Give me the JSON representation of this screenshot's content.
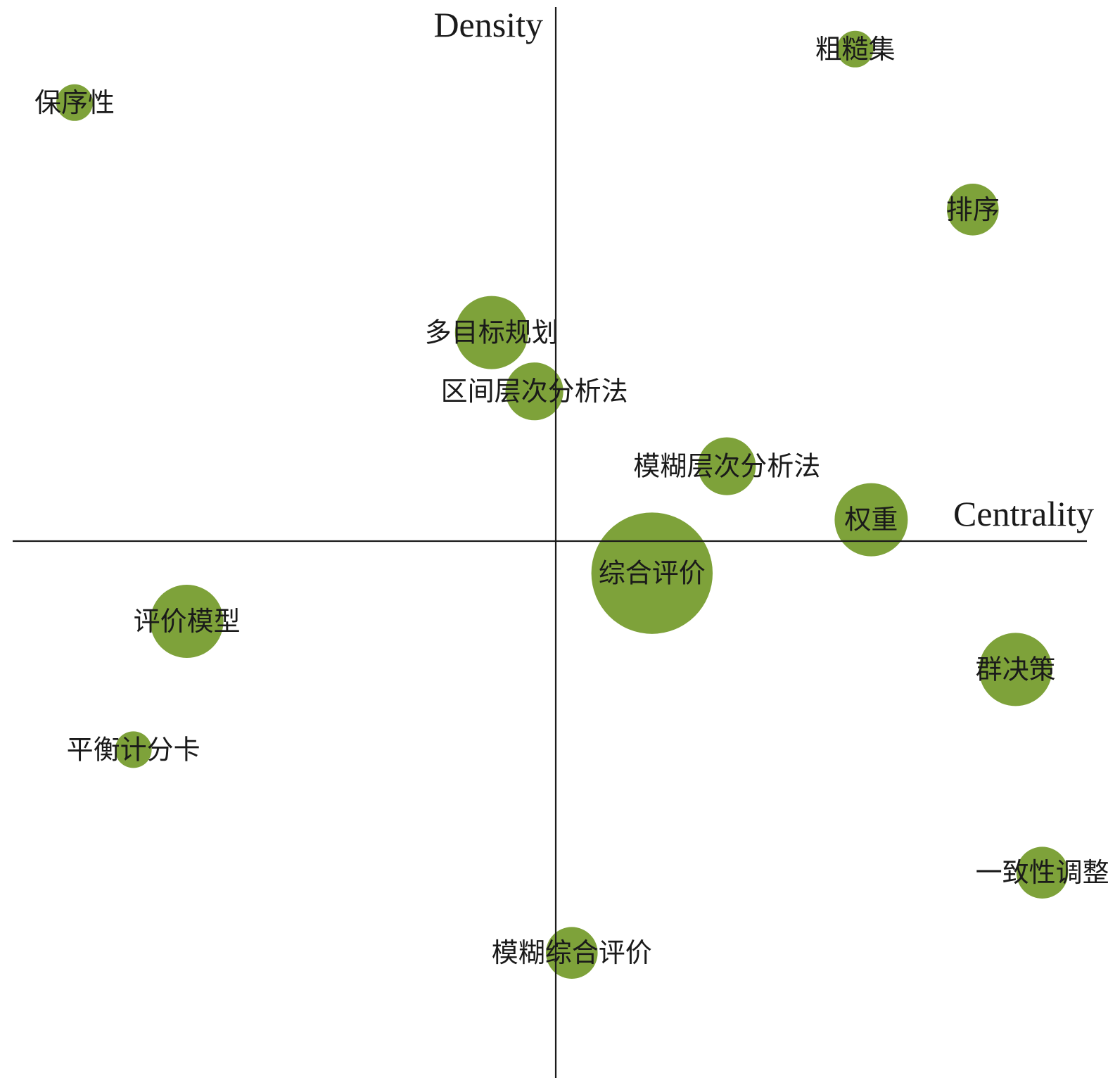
{
  "chart_data": {
    "type": "scatter",
    "subtype": "strategic-diagram-bubble",
    "xlabel": "Centrality",
    "ylabel": "Density",
    "xlim": [
      -10,
      10
    ],
    "ylim": [
      -10,
      10
    ],
    "grid": false,
    "bubble_color": "#7ea23a",
    "points": [
      {
        "label": "粗糙集",
        "x": 5.6,
        "y": 9.2,
        "size": 1
      },
      {
        "label": "保序性",
        "x": -9.0,
        "y": 8.2,
        "size": 1
      },
      {
        "label": "排序",
        "x": 7.8,
        "y": 6.2,
        "size": 2
      },
      {
        "label": "多目标规划",
        "x": -1.2,
        "y": 3.9,
        "size": 4
      },
      {
        "label": "区间层次分析法",
        "x": -0.4,
        "y": 2.8,
        "size": 2.5
      },
      {
        "label": "模糊层次分析法",
        "x": 3.2,
        "y": 1.4,
        "size": 2.5
      },
      {
        "label": "权重",
        "x": 5.9,
        "y": 0.4,
        "size": 4
      },
      {
        "label": "综合评价",
        "x": 1.8,
        "y": -0.6,
        "size": 11
      },
      {
        "label": "评价模型",
        "x": -6.9,
        "y": -1.5,
        "size": 4
      },
      {
        "label": "群决策",
        "x": 8.6,
        "y": -2.4,
        "size": 4
      },
      {
        "label": "平衡计分卡",
        "x": -7.9,
        "y": -3.9,
        "size": 1
      },
      {
        "label": "一致性调整",
        "x": 9.1,
        "y": -6.2,
        "size": 2
      },
      {
        "label": "模糊综合评价",
        "x": 0.3,
        "y": -7.7,
        "size": 2
      }
    ]
  }
}
